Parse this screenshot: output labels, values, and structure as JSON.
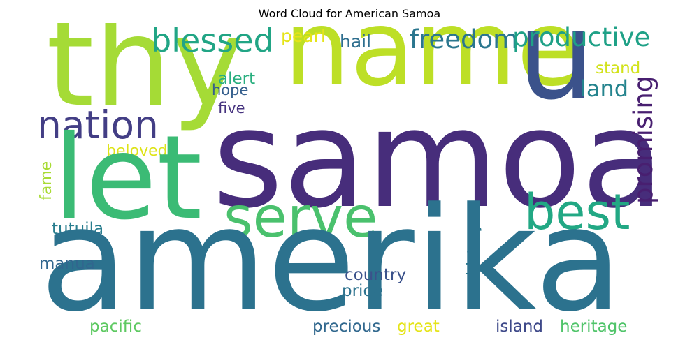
{
  "title": "Word Cloud for American Samoa",
  "words": {
    "samoa": {
      "text": "samoa",
      "color": "#472d7b"
    },
    "amerika": {
      "text": "amerika",
      "color": "#2c728e"
    },
    "thy": {
      "text": "thy",
      "color": "#a5db36"
    },
    "name": {
      "text": "name",
      "color": "#bddf26"
    },
    "u": {
      "text": "u",
      "color": "#3b528b"
    },
    "let": {
      "text": "let",
      "color": "#3bbb75"
    },
    "serve": {
      "text": "serve",
      "color": "#4ac16d"
    },
    "best": {
      "text": "best",
      "color": "#22a884"
    },
    "nation": {
      "text": "nation",
      "color": "#433e85"
    },
    "blessed": {
      "text": "blessed",
      "color": "#21a585"
    },
    "freedom": {
      "text": "freedom",
      "color": "#2a768e"
    },
    "productive": {
      "text": "productive",
      "color": "#1fa187"
    },
    "land": {
      "text": "land",
      "color": "#25848e"
    },
    "promising": {
      "text": "promising",
      "color": "#481f70"
    },
    "pearl": {
      "text": "pearl",
      "color": "#e5e419"
    },
    "hail": {
      "text": "hail",
      "color": "#2e6e8e"
    },
    "stand": {
      "text": "stand",
      "color": "#d2e21b"
    },
    "alert": {
      "text": "alert",
      "color": "#29af7f"
    },
    "hope": {
      "text": "hope",
      "color": "#355f8d"
    },
    "five": {
      "text": "five",
      "color": "#46337f"
    },
    "beloved": {
      "text": "beloved",
      "color": "#dde318"
    },
    "fame": {
      "text": "fame",
      "color": "#a8db34"
    },
    "tutuila": {
      "text": "tutuila",
      "color": "#287d8e"
    },
    "manua": {
      "text": "manua",
      "color": "#31668e"
    },
    "history": {
      "text": "history",
      "color": "#2a788e"
    },
    "country": {
      "text": "country",
      "color": "#3b528b"
    },
    "pride": {
      "text": "pride",
      "color": "#2c728e"
    },
    "pacific": {
      "text": "pacific",
      "color": "#5ec962"
    },
    "precious": {
      "text": "precious",
      "color": "#31688e"
    },
    "great": {
      "text": "great",
      "color": "#e5e419"
    },
    "island": {
      "text": "island",
      "color": "#3e4989"
    },
    "heritage": {
      "text": "heritage",
      "color": "#50c46a"
    }
  }
}
